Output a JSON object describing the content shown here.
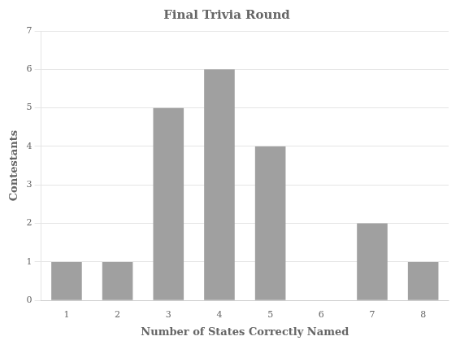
{
  "chart_data": {
    "type": "bar",
    "title": "Final Trivia Round",
    "xlabel": "Number of States Correctly Named",
    "ylabel": "Contestants",
    "categories": [
      1,
      2,
      3,
      4,
      5,
      6,
      7,
      8
    ],
    "values": [
      1,
      1,
      5,
      6,
      4,
      0,
      2,
      1
    ],
    "color": "#a0a0a0",
    "ylim": [
      0,
      7
    ],
    "yticks": [
      0,
      1,
      2,
      3,
      4,
      5,
      6,
      7
    ],
    "grid": true
  }
}
